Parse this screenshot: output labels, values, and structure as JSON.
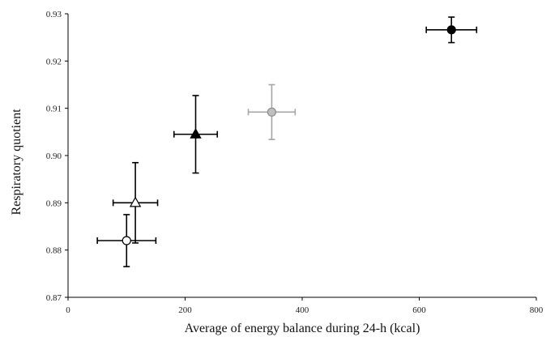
{
  "chart_data": {
    "type": "scatter",
    "title": "",
    "xlabel": "Average of energy balance during 24-h (kcal)",
    "ylabel": "Respiratory quotient",
    "xlim": [
      0,
      800
    ],
    "ylim": [
      0.87,
      0.93
    ],
    "x_ticks": [
      0,
      200,
      400,
      600,
      800
    ],
    "y_ticks": [
      0.87,
      0.88,
      0.89,
      0.9,
      0.91,
      0.92,
      0.93
    ],
    "x_tick_labels": [
      "0",
      "200",
      "400",
      "600",
      "800"
    ],
    "y_tick_labels": [
      "0.87",
      "0.88",
      "0.89",
      "0.90",
      "0.91",
      "0.92",
      "0.93"
    ],
    "grid": false,
    "legend": "none",
    "points": [
      {
        "marker": "circle",
        "fill": "#ffffff",
        "stroke": "#000000",
        "error_color": "#000000",
        "x": 100,
        "y": 0.882,
        "x_err": 50,
        "y_err_low": 0.0055,
        "y_err_high": 0.0055
      },
      {
        "marker": "triangle",
        "fill": "#ffffff",
        "stroke": "#000000",
        "error_color": "#000000",
        "x": 115,
        "y": 0.89,
        "x_err": 38,
        "y_err_low": 0.0085,
        "y_err_high": 0.0085
      },
      {
        "marker": "triangle",
        "fill": "#000000",
        "stroke": "#000000",
        "error_color": "#000000",
        "x": 218,
        "y": 0.9045,
        "x_err": 37,
        "y_err_low": 0.0082,
        "y_err_high": 0.0082
      },
      {
        "marker": "circle",
        "fill": "#bfbfbf",
        "stroke": "#8c8c8c",
        "error_color": "#a6a6a6",
        "x": 348,
        "y": 0.9092,
        "x_err": 40,
        "y_err_low": 0.0058,
        "y_err_high": 0.0058
      },
      {
        "marker": "circle",
        "fill": "#000000",
        "stroke": "#000000",
        "error_color": "#000000",
        "x": 655,
        "y": 0.9266,
        "x_err": 43,
        "y_err_low": 0.0027,
        "y_err_high": 0.0027
      }
    ]
  }
}
